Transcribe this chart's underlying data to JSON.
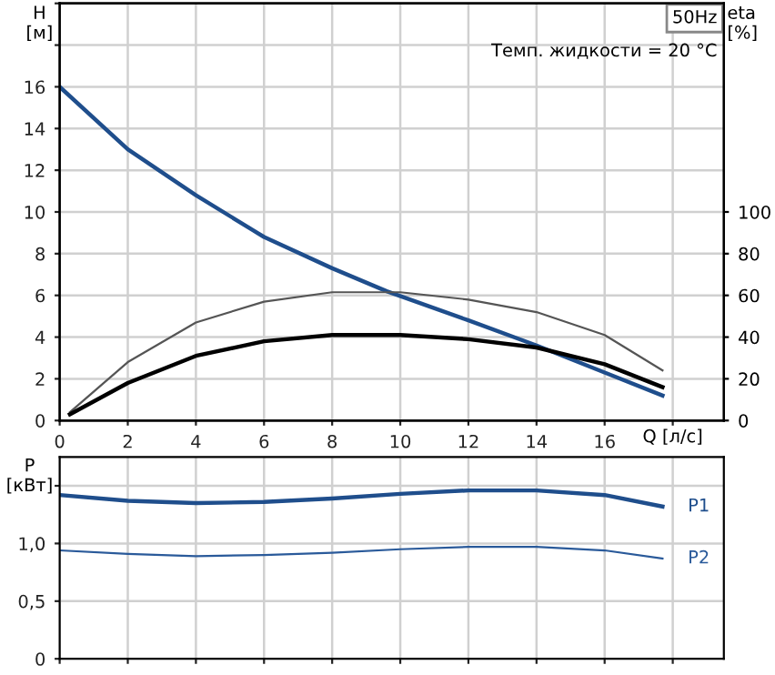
{
  "chart_data": [
    {
      "type": "line",
      "ylabel": "H [м]",
      "y2label": "eta [%]",
      "xlabel": "Q [л/с]",
      "annotations": [
        "50Hz",
        "Темп. жидкости = 20 °C"
      ],
      "xlim": [
        0,
        19.5
      ],
      "xticks": [
        0,
        2,
        4,
        6,
        8,
        10,
        12,
        14,
        16,
        {
          "value": 18,
          "label": null
        }
      ],
      "ylim": [
        0,
        20
      ],
      "yticks": [
        0,
        2,
        4,
        6,
        8,
        10,
        12,
        14,
        16,
        {
          "value": 18,
          "label": null
        },
        {
          "value": 20,
          "label": null
        }
      ],
      "y2lim": [
        0,
        200
      ],
      "y2ticks": [
        0,
        20,
        40,
        60,
        80,
        100
      ],
      "grid": true,
      "legend": false,
      "series": [
        {
          "color": "#1f4e8c",
          "x": [
            0,
            2,
            4,
            6,
            8,
            9.6,
            12,
            14,
            16,
            17.7
          ],
          "values": [
            16,
            13,
            10.8,
            8.8,
            7.3,
            6.2,
            4.8,
            3.6,
            2.3,
            1.2
          ]
        },
        {
          "color": "#555555",
          "axis": "y2",
          "x": [
            0.3,
            2,
            4,
            6,
            8,
            10,
            12,
            14,
            16,
            17.7
          ],
          "values": [
            4,
            28,
            47,
            57,
            61.5,
            61.5,
            58,
            52,
            41,
            24
          ]
        },
        {
          "color": "#000000",
          "axis": "y2",
          "x": [
            0.3,
            2,
            4,
            6,
            8,
            10,
            12,
            14,
            16,
            17.7
          ],
          "values": [
            3,
            18,
            31,
            38,
            41,
            41,
            39,
            35,
            27,
            16
          ]
        }
      ]
    },
    {
      "type": "line",
      "xlim": [
        0,
        19.5
      ],
      "xticks": [
        0,
        2,
        4,
        6,
        8,
        10,
        12,
        14,
        16,
        18
      ],
      "ylabel": "P [кВт]",
      "ylim": [
        0,
        1.75
      ],
      "yticks": [
        0,
        {
          "value": 0.5,
          "label": "0,5"
        },
        {
          "value": 1.0,
          "label": "1,0"
        },
        {
          "value": 1.5,
          "label": null
        }
      ],
      "grid": true,
      "tick_labels": "y",
      "legend": false,
      "series": [
        {
          "name": "P1",
          "color": "#1f4e8c",
          "x": [
            0,
            2,
            4,
            6,
            8,
            10,
            12,
            14,
            16,
            17.7
          ],
          "values": [
            1.42,
            1.37,
            1.35,
            1.36,
            1.39,
            1.43,
            1.46,
            1.46,
            1.42,
            1.32
          ]
        },
        {
          "name": "P2",
          "color": "#2a5a9a",
          "x": [
            0,
            2,
            4,
            6,
            8,
            10,
            12,
            14,
            16,
            17.7
          ],
          "values": [
            0.94,
            0.91,
            0.89,
            0.9,
            0.92,
            0.95,
            0.97,
            0.97,
            0.94,
            0.87
          ]
        }
      ]
    }
  ]
}
